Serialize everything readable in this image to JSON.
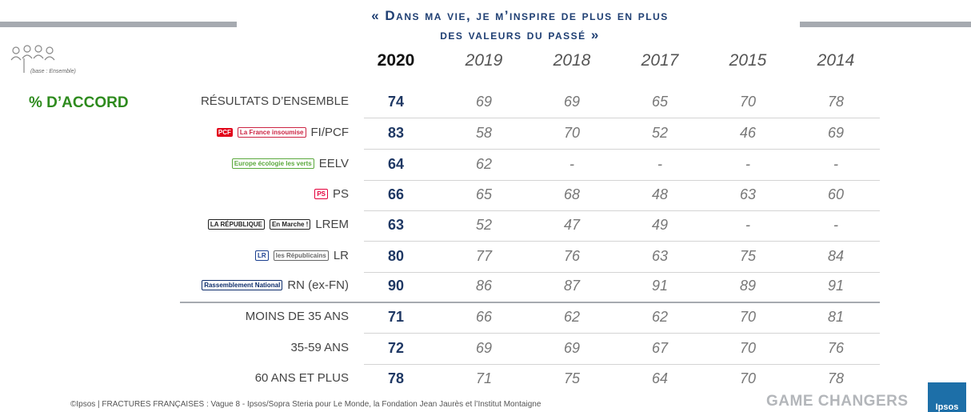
{
  "header": {
    "title_line1": "« Dans ma vie, je m’inspire de plus en plus",
    "title_line2": "des valeurs du passé »",
    "base": "(base : Ensemble)",
    "accord": "% D’ACCORD"
  },
  "table": {
    "columns": [
      "2020",
      "2019",
      "2018",
      "2017",
      "2015",
      "2014"
    ],
    "rows": [
      {
        "label": "RÉSULTATS D’ENSEMBLE",
        "logos": [],
        "values": [
          74,
          69,
          69,
          65,
          70,
          78
        ]
      },
      {
        "label": "FI/PCF",
        "logos": [
          "PCF",
          "La France insoumise"
        ],
        "values": [
          83,
          58,
          70,
          52,
          46,
          69
        ]
      },
      {
        "label": "EELV",
        "logos": [
          "Europe écologie les verts"
        ],
        "values": [
          64,
          62,
          "-",
          "-",
          "-",
          "-"
        ]
      },
      {
        "label": "PS",
        "logos": [
          "PS"
        ],
        "values": [
          66,
          65,
          68,
          48,
          63,
          60
        ]
      },
      {
        "label": "LREM",
        "logos": [
          "LA RÉPUBLIQUE",
          "En Marche !"
        ],
        "values": [
          63,
          52,
          47,
          49,
          "-",
          "-"
        ]
      },
      {
        "label": "LR",
        "logos": [
          "LR",
          "les Républicains"
        ],
        "values": [
          80,
          77,
          76,
          63,
          75,
          84
        ]
      },
      {
        "label": "RN (ex-FN)",
        "logos": [
          "Rassemblement National"
        ],
        "values": [
          90,
          86,
          87,
          91,
          89,
          91
        ]
      },
      {
        "label": "MOINS DE 35 ANS",
        "logos": [],
        "values": [
          71,
          66,
          62,
          62,
          70,
          81
        ]
      },
      {
        "label": "35-59 ANS",
        "logos": [],
        "values": [
          72,
          69,
          69,
          67,
          70,
          76
        ]
      },
      {
        "label": "60 ANS ET PLUS",
        "logos": [],
        "values": [
          78,
          71,
          75,
          64,
          70,
          78
        ]
      }
    ]
  },
  "footer": {
    "source": "©Ipsos | FRACTURES FRANÇAISES : Vague 8 - Ipsos/Sopra Steria pour Le Monde, la Fondation Jean Jaurès et l’Institut Montaigne",
    "brand": "GAME CHANGERS",
    "logo": "Ipsos"
  }
}
